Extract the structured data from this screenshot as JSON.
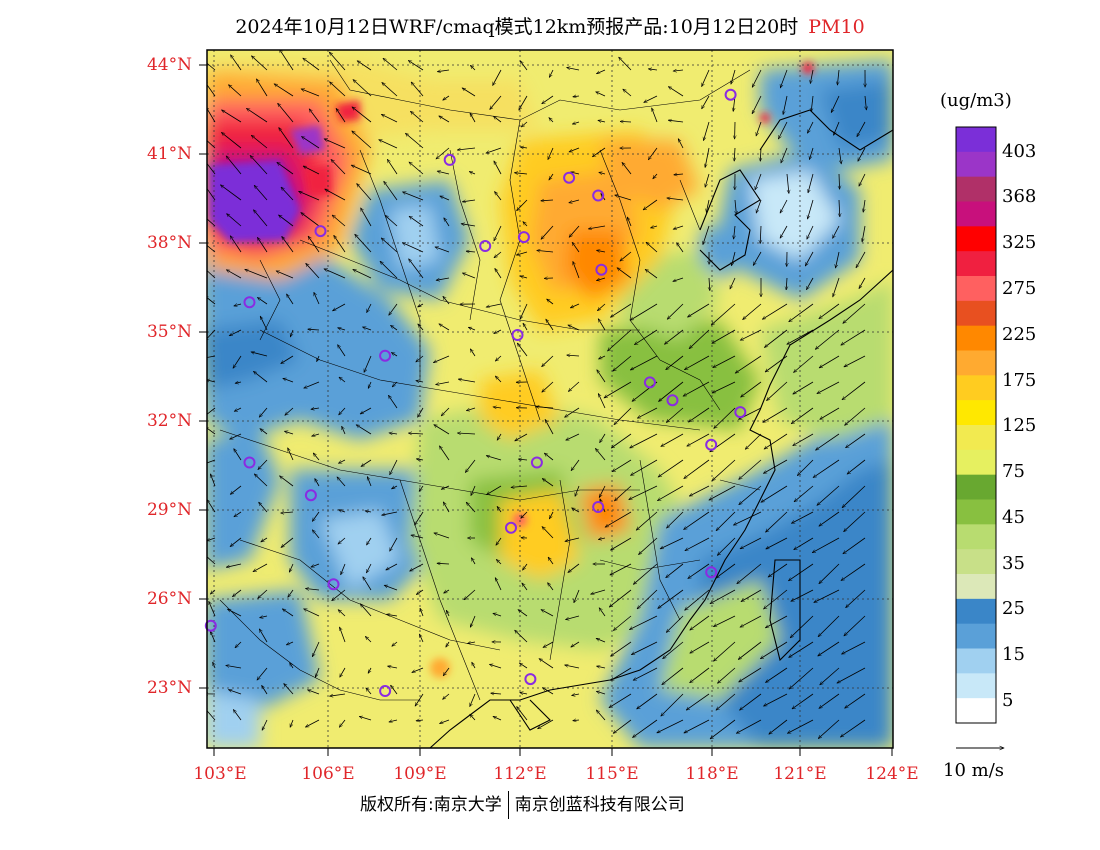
{
  "title": "2024年10月12日WRF/cmaq模式12km预报产品:10月12日20时",
  "pollutant": "PM10",
  "lat_labels": [
    "44°N",
    "41°N",
    "38°N",
    "35°N",
    "32°N",
    "29°N",
    "26°N",
    "23°N"
  ],
  "lon_labels": [
    "103°E",
    "106°E",
    "109°E",
    "112°E",
    "115°E",
    "118°E",
    "121°E",
    "124°E"
  ],
  "colorbar": {
    "unit": "(ug/m3)",
    "labels": [
      "403",
      "368",
      "325",
      "275",
      "225",
      "175",
      "125",
      "75",
      "45",
      "35",
      "25",
      "15",
      "5"
    ],
    "colors": [
      "#7b2fd8",
      "#9b35c8",
      "#b03068",
      "#c8107c",
      "#ff0000",
      "#f02040",
      "#ff6060",
      "#e85020",
      "#ff8800",
      "#ffaa30",
      "#ffcc20",
      "#ffe800",
      "#f2ea50",
      "#e6f060",
      "#68a830",
      "#88c040",
      "#b8dc70",
      "#c8e088",
      "#dce8b8",
      "#3a86c8",
      "#5aa0d8",
      "#a0d0f0",
      "#c8e8f8",
      "#ffffff"
    ]
  },
  "wind": {
    "label": "10 m/s"
  },
  "cities": [
    [
      119.0,
      43.0
    ],
    [
      110.3,
      40.8
    ],
    [
      114.0,
      40.2
    ],
    [
      114.9,
      39.6
    ],
    [
      106.3,
      38.4
    ],
    [
      111.4,
      37.9
    ],
    [
      112.6,
      38.2
    ],
    [
      115.0,
      37.1
    ],
    [
      104.1,
      36.0
    ],
    [
      112.4,
      34.9
    ],
    [
      108.3,
      34.2
    ],
    [
      116.5,
      33.3
    ],
    [
      117.2,
      32.7
    ],
    [
      119.3,
      32.3
    ],
    [
      104.1,
      30.6
    ],
    [
      113.0,
      30.6
    ],
    [
      118.4,
      31.2
    ],
    [
      106.0,
      29.5
    ],
    [
      114.9,
      29.1
    ],
    [
      112.2,
      28.4
    ],
    [
      106.7,
      26.5
    ],
    [
      118.4,
      26.9
    ],
    [
      102.9,
      25.1
    ],
    [
      108.3,
      22.9
    ],
    [
      112.8,
      23.3
    ]
  ],
  "copyright": {
    "part1": "版权所有:南京大学",
    "part2": "南京创蓝科技有限公司"
  }
}
